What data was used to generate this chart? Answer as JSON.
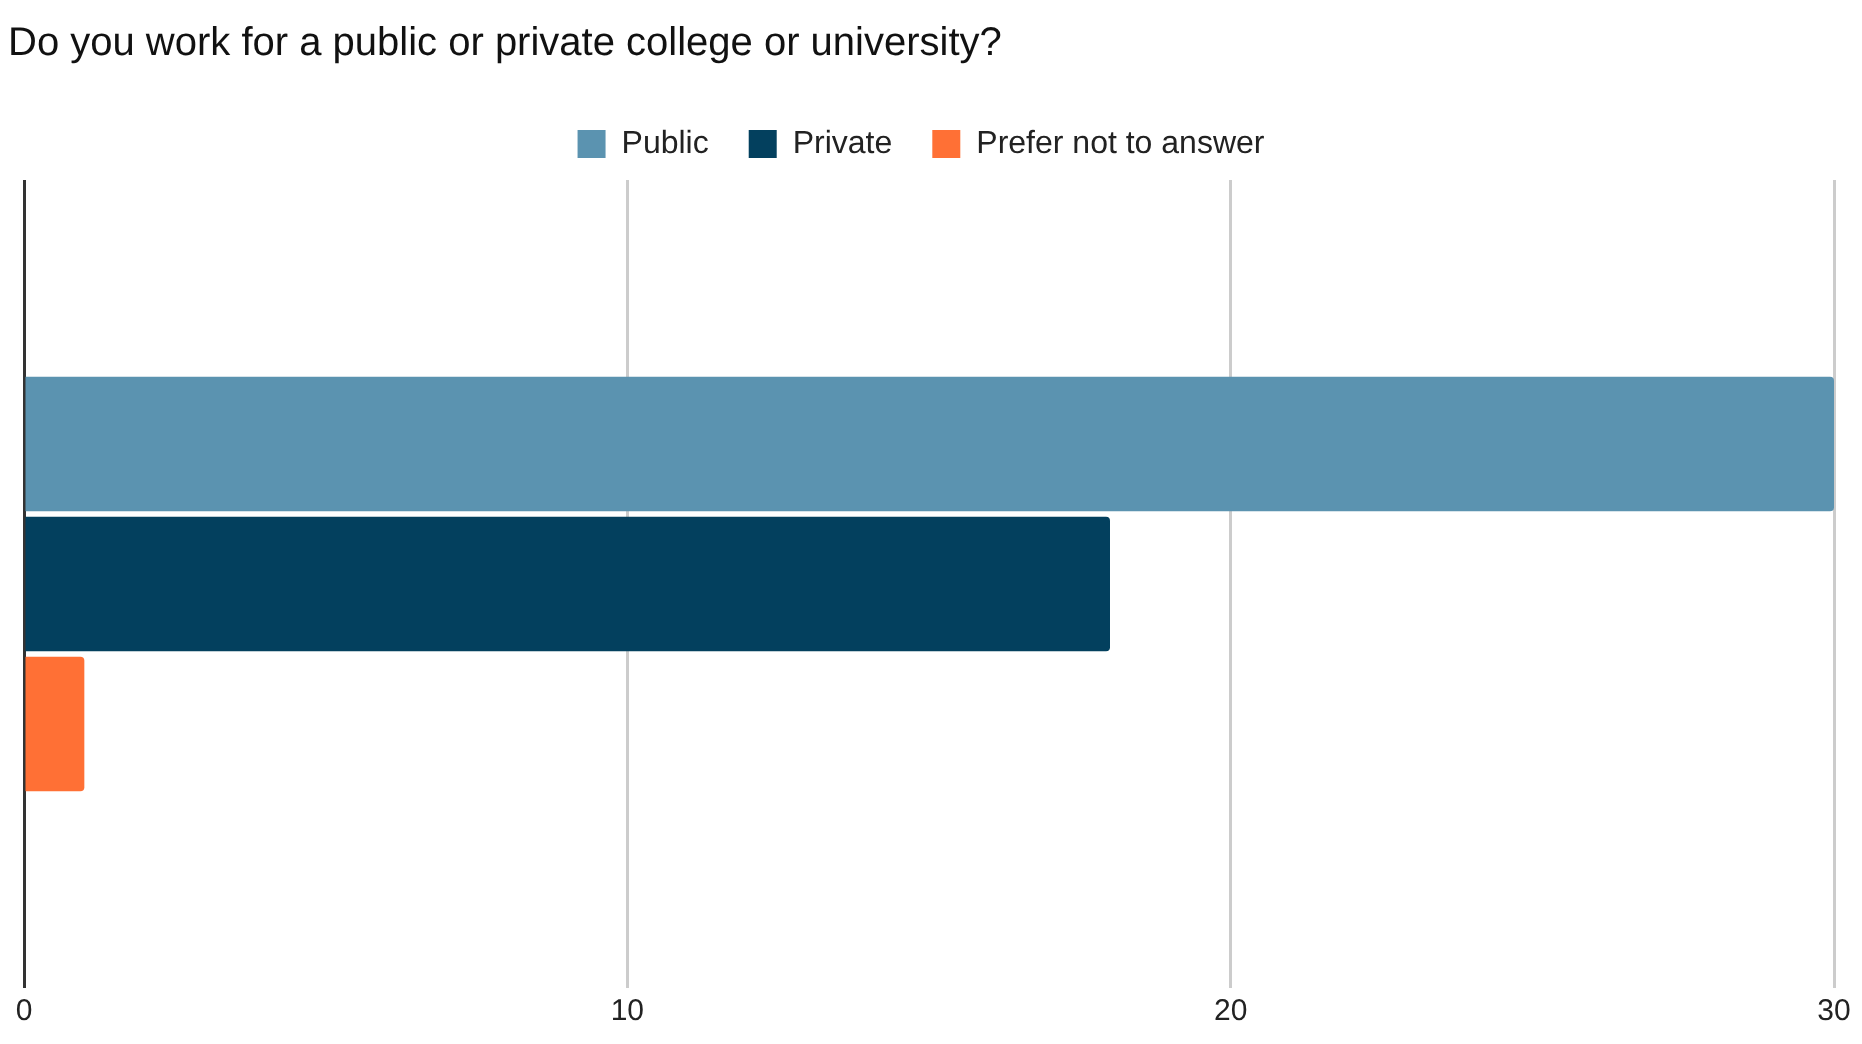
{
  "chart_data": {
    "type": "bar",
    "orientation": "horizontal",
    "title": "Do you work for a public or private college or university?",
    "categories": [
      null
    ],
    "series": [
      {
        "name": "Public",
        "color": "#5b93b0",
        "values": [
          30
        ]
      },
      {
        "name": "Private",
        "color": "#03405e",
        "values": [
          18
        ]
      },
      {
        "name": "Prefer not to answer",
        "color": "#ff7035",
        "values": [
          1
        ]
      }
    ],
    "xlim": [
      0,
      30
    ],
    "xticks": [
      0,
      10,
      20,
      30
    ],
    "grid": "x",
    "legend": "top",
    "tick_labels": "x"
  }
}
